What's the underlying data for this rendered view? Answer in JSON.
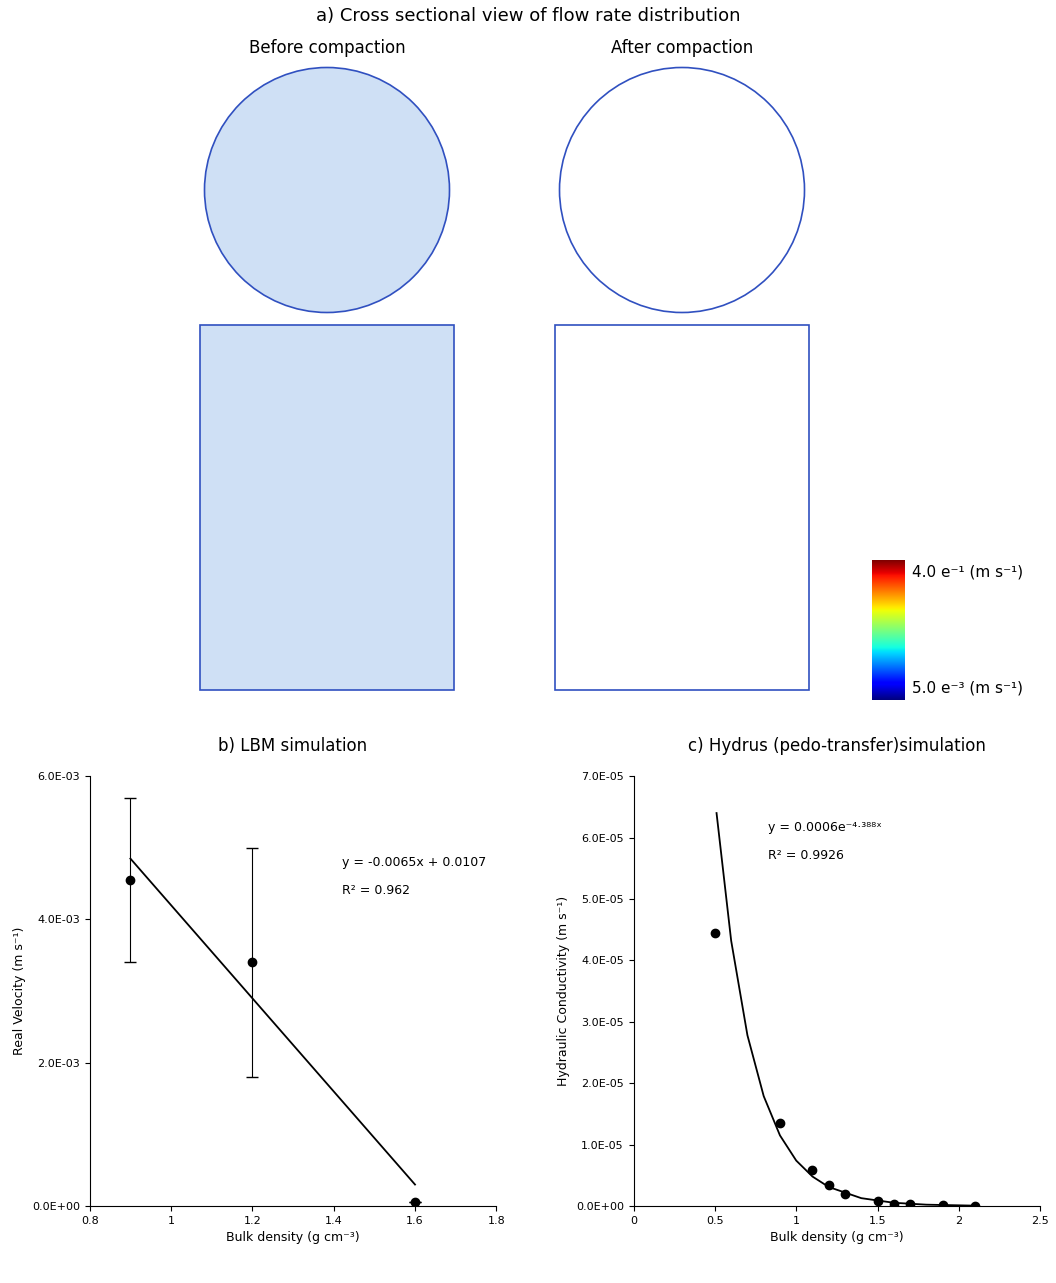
{
  "panel_a": {
    "title": "a) Cross sectional view of flow rate distribution",
    "columns": [
      "Before compaction",
      "After compaction"
    ],
    "colorbar": {
      "max_label": "4.0 e⁻¹ (m s⁻¹)",
      "min_label": "5.0 e⁻³ (m s⁻¹)"
    }
  },
  "chart_data": [
    {
      "type": "scatter",
      "title": "b) LBM simulation",
      "x_label": "Bulk density (g cm⁻³)",
      "y_label": "Real Velocity (m s⁻¹)",
      "x": [
        0.9,
        1.2,
        1.6
      ],
      "values": [
        0.00455,
        0.0034,
        5e-05
      ],
      "error": [
        0.00115,
        0.0016,
        0.0
      ],
      "color": "#000000",
      "marker": "o",
      "trendline": {
        "x": [
          0.9,
          1.6
        ],
        "values": [
          0.00485,
          0.0003
        ],
        "color": "#000000",
        "line_style": "solid"
      },
      "annotations": [
        "y = -0.0065x + 0.0107",
        "R² = 0.962"
      ],
      "xlim": [
        0.8,
        1.8
      ],
      "xticks": [
        0.8,
        1,
        1.2,
        1.4,
        1.6,
        1.8
      ],
      "ylim": [
        0,
        0.006
      ],
      "yticks": [
        {
          "value": 0,
          "label": "0.0E+00"
        },
        {
          "value": 0.002,
          "label": "2.0E-03"
        },
        {
          "value": 0.004,
          "label": "4.0E-03"
        },
        {
          "value": 0.006,
          "label": "6.0E-03"
        }
      ],
      "grid": false
    },
    {
      "type": "scatter",
      "title": "c) Hydrus (pedo-transfer)simulation",
      "x_label": "Bulk density (g cm⁻³)",
      "y_label": "Hydraulic Conductivity (m s⁻¹)",
      "x": [
        0.5,
        0.9,
        1.1,
        1.2,
        1.3,
        1.5,
        1.6,
        1.7,
        1.9,
        2.1
      ],
      "values": [
        4.45e-05,
        1.35e-05,
        5.8e-06,
        3.5e-06,
        2e-06,
        8e-07,
        4e-07,
        3e-07,
        1e-07,
        5e-08
      ],
      "color": "#000000",
      "marker": "o",
      "trendline": {
        "x": [
          0.51,
          0.6,
          0.7,
          0.8,
          0.9,
          1.0,
          1.1,
          1.2,
          1.4,
          1.6,
          1.8,
          2.1
        ],
        "values": [
          6.4e-05,
          4.32e-05,
          2.78e-05,
          1.79e-05,
          1.15e-05,
          7.4e-06,
          4.8e-06,
          3.1e-06,
          1.28e-06,
          5.3e-07,
          2.2e-07,
          6e-08
        ],
        "color": "#000000",
        "line_style": "solid"
      },
      "annotations": [
        "y = 0.0006e⁻⁴·³⁸⁸ˣ",
        "R² = 0.9926"
      ],
      "xlim": [
        0,
        2.5
      ],
      "xticks": [
        0,
        0.5,
        1,
        1.5,
        2,
        2.5
      ],
      "ylim": [
        0,
        7e-05
      ],
      "yticks": [
        {
          "value": 0,
          "label": "0.0E+00"
        },
        {
          "value": 1e-05,
          "label": "1.0E-05"
        },
        {
          "value": 2e-05,
          "label": "2.0E-05"
        },
        {
          "value": 3e-05,
          "label": "3.0E-05"
        },
        {
          "value": 4e-05,
          "label": "4.0E-05"
        },
        {
          "value": 5e-05,
          "label": "5.0E-05"
        },
        {
          "value": 6e-05,
          "label": "6.0E-05"
        },
        {
          "value": 7e-05,
          "label": "7.0E-05"
        }
      ],
      "grid": false
    }
  ]
}
